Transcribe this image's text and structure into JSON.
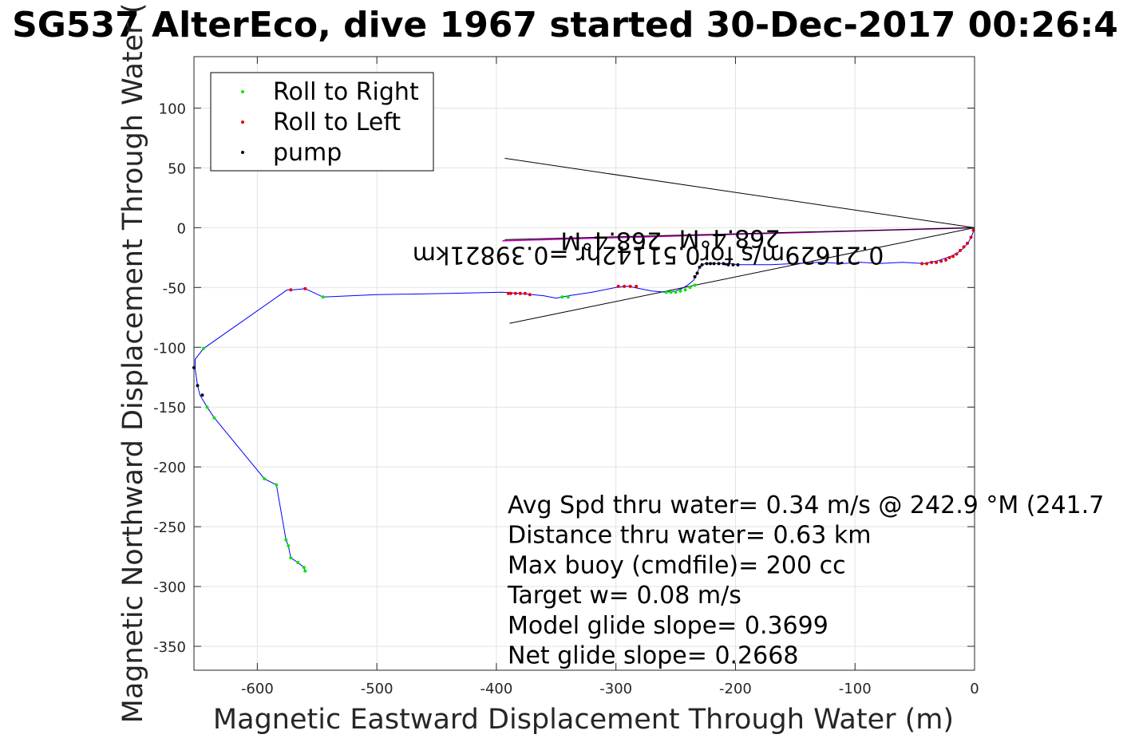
{
  "chart_data": {
    "type": "scatter",
    "title": "SG537 AlterEco, dive 1967 started 30-Dec-2017 00:26:4",
    "xlabel": "Magnetic Eastward Displacement Through Water (m)",
    "ylabel": "Magnetic Northward Displacement Through Water (",
    "xlim": [
      -653,
      0
    ],
    "ylim": [
      -370,
      143
    ],
    "grid": true,
    "xticks": [
      -600,
      -500,
      -400,
      -300,
      -200,
      -100,
      0
    ],
    "xtick_labels": [
      "-600",
      "-500",
      "-400",
      "-300",
      "-200",
      "-100",
      "0"
    ],
    "yticks": [
      100,
      50,
      0,
      -50,
      -100,
      -150,
      -200,
      -250,
      -300,
      -350
    ],
    "ytick_labels": [
      "100",
      "50",
      "0",
      "-50",
      "-100",
      "-150",
      "-200",
      "-250",
      "-300",
      "-350"
    ],
    "legend": {
      "placement": "top-left",
      "entries": [
        {
          "label": "Roll to Right",
          "color": "#00e600"
        },
        {
          "label": "Roll to Left",
          "color": "#e60000"
        },
        {
          "label": "pump",
          "color": "#000000"
        }
      ]
    },
    "track": {
      "color": "#0000ff",
      "x": [
        0,
        -2,
        -5,
        -9,
        -14,
        -20,
        -26,
        -32,
        -37,
        -42,
        -60,
        -80,
        -95,
        -110,
        -130,
        -150,
        -170,
        -190,
        -198,
        -205,
        -212,
        -220,
        -225,
        -228,
        -230,
        -232,
        -235,
        -240,
        -245,
        -250,
        -258,
        -270,
        -280,
        -290,
        -300,
        -320,
        -340,
        -345,
        -350,
        -360,
        -380,
        -395,
        -440,
        -500,
        -545,
        -560,
        -570,
        -575,
        -645,
        -652,
        -652,
        -650,
        -648,
        -642,
        -636,
        -594,
        -584,
        -576,
        -574,
        -572,
        -566,
        -561,
        -560
      ],
      "y": [
        0,
        -6,
        -12,
        -17,
        -21,
        -24,
        -26,
        -28,
        -29,
        -30,
        -29,
        -30,
        -29,
        -30,
        -29,
        -30,
        -31,
        -31,
        -31,
        -30,
        -30,
        -30,
        -30,
        -31,
        -33,
        -38,
        -44,
        -48,
        -51,
        -53,
        -54,
        -53,
        -51,
        -49,
        -50,
        -54,
        -57,
        -58,
        -59,
        -57,
        -55,
        -54,
        -55,
        -56,
        -58,
        -51,
        -52,
        -52,
        -101,
        -110,
        -118,
        -132,
        -140,
        -150,
        -159,
        -210,
        -215,
        -261,
        -266,
        -276,
        -280,
        -284,
        -287
      ]
    },
    "roll_right": {
      "x": [
        -258,
        -254,
        -250,
        -246,
        -242,
        -238,
        -234,
        -345,
        -340,
        -645,
        -642,
        -636,
        -594,
        -584,
        -576,
        -574,
        -572,
        -566,
        -561,
        -560,
        -545
      ],
      "y": [
        -54,
        -54,
        -54,
        -53,
        -52,
        -50,
        -48,
        -58,
        -58,
        -101,
        -150,
        -159,
        -210,
        -215,
        -261,
        -266,
        -276,
        -280,
        -284,
        -287,
        -58
      ]
    },
    "roll_left": {
      "x": [
        -1,
        -3,
        -6,
        -9,
        -12,
        -15,
        -18,
        -21,
        -24,
        -28,
        -32,
        -36,
        -40,
        -44,
        -283,
        -288,
        -293,
        -298,
        -372,
        -376,
        -380,
        -384,
        -388,
        -560,
        -572,
        -390
      ],
      "y": [
        -2,
        -8,
        -13,
        -16,
        -19,
        -22,
        -24,
        -25,
        -27,
        -28,
        -29,
        -29,
        -30,
        -30,
        -49,
        -49,
        -49,
        -49,
        -56,
        -55,
        -55,
        -55,
        -55,
        -51,
        -52,
        -55
      ]
    },
    "pump": {
      "x": [
        -198,
        -202,
        -206,
        -210,
        -214,
        -218,
        -221,
        -224,
        -228,
        -230,
        -232,
        -234,
        -653,
        -650,
        -646
      ],
      "y": [
        -31,
        -31,
        -31,
        -30,
        -30,
        -30,
        -30,
        -30,
        -31,
        -33,
        -38,
        -41,
        -117,
        -132,
        -140
      ]
    },
    "reference_lines": [
      {
        "name": "current-direction-line",
        "color": "#cc00cc",
        "x": [
          0,
          -395
        ],
        "y": [
          0,
          -11
        ]
      },
      {
        "name": "cone-upper-line",
        "color": "#000000",
        "x": [
          0,
          -393
        ],
        "y": [
          0,
          58
        ]
      },
      {
        "name": "cone-lower-line",
        "color": "#000000",
        "x": [
          0,
          -389
        ],
        "y": [
          0,
          -80
        ]
      },
      {
        "name": "cone-center-line",
        "color": "#000000",
        "x": [
          0,
          -393
        ],
        "y": [
          0,
          -10
        ]
      }
    ],
    "flipped_annotations": [
      {
        "text": "268.4°M",
        "x": -205,
        "y": -2
      },
      {
        "text": "268.4°M",
        "x": -304,
        "y": -4
      },
      {
        "text": "0.21629m/s for0.51142hr =0.39821km",
        "x": -273,
        "y": -16
      }
    ],
    "info_lines": [
      "Avg Spd thru water=  0.34 m/s @ 242.9 °M (241.7",
      "Distance thru water=  0.63 km",
      "Max buoy (cmdfile)= 200 cc",
      "Target w= 0.08 m/s",
      "Model glide slope= 0.3699",
      "Net glide slope= 0.2668"
    ]
  }
}
